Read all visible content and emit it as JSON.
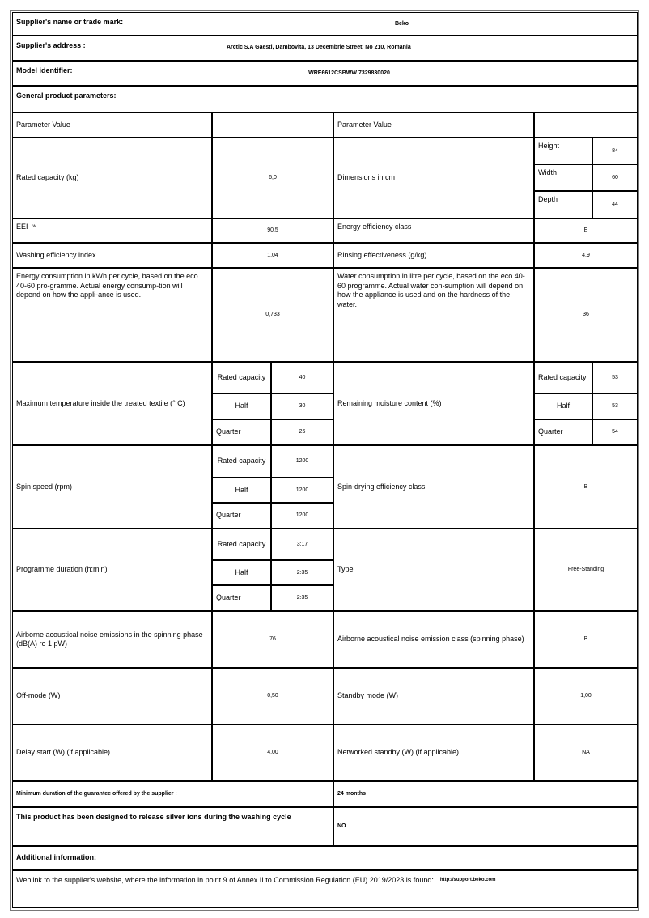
{
  "supplier_name": {
    "label": "Supplier's name or trade mark:",
    "value": "Beko"
  },
  "supplier_address": {
    "label": "Supplier's address :",
    "value": "Arctic S.A  Gaesti, Dambovita, 13 Decembrie Street, No 210, Romania"
  },
  "model_identifier": {
    "label": "Model identifier:",
    "value": "WRE6612CSBWW 7329830020"
  },
  "general_title": "General product parameters:",
  "param_header_left": "Parameter Value",
  "param_header_right": "Parameter Value",
  "rated_capacity": {
    "label": "Rated capacity (kg)",
    "value": "6,0"
  },
  "dimensions": {
    "label": "Dimensions in cm",
    "height_label": "Height",
    "height": "84",
    "width_label": "Width",
    "width": "60",
    "depth_label": "Depth",
    "depth": "44"
  },
  "eei": {
    "label": "EEI",
    "sub": "w",
    "value": "90,5"
  },
  "energy_class": {
    "label": "Energy efficiency class",
    "value": "E"
  },
  "washing_index": {
    "label": "Washing efficiency index",
    "value": "1,04"
  },
  "rinsing": {
    "label": "Rinsing effectiveness (g/kg)",
    "value": "4,9"
  },
  "energy_consumption": {
    "label": "Energy consumption in kWh per cycle, based on the eco 40-60 pro-gramme. Actual energy consump-tion will depend on how the appli-ance is used.",
    "value": "0,733"
  },
  "water_consumption": {
    "label": "Water consumption in litre per cycle, based on the eco 40-60 programme. Actual water con-sumption will depend on how the appliance is used and on the hardness of the water.",
    "value": "36"
  },
  "load_labels": {
    "rated": "Rated capacity",
    "half": "Half",
    "quarter": "Quarter"
  },
  "max_temp": {
    "label": "Maximum temperature inside the treated textile (° C)",
    "rated": "40",
    "half": "30",
    "quarter": "26"
  },
  "moisture": {
    "label": "Remaining moisture content (%)",
    "rated": "53",
    "half": "53",
    "quarter": "54"
  },
  "spin_speed": {
    "label": "Spin speed (rpm)",
    "rated": "1200",
    "half": "1200",
    "quarter": "1200"
  },
  "spin_class": {
    "label": "Spin-drying efficiency class",
    "value": "B"
  },
  "duration": {
    "label": "Programme duration (h:min)",
    "rated": "3:17",
    "half": "2:35",
    "quarter": "2:35"
  },
  "type": {
    "label": "Type",
    "value": "Free-Standing"
  },
  "noise": {
    "label": "Airborne acoustical noise emissions in the spinning phase (dB(A) re 1 pW)",
    "value": "76"
  },
  "noise_class": {
    "label": "Airborne acoustical noise emission class (spinning phase)",
    "value": "B"
  },
  "off_mode": {
    "label": "Off-mode (W)",
    "value": "0,50"
  },
  "standby": {
    "label": "Standby mode (W)",
    "value": "1,00"
  },
  "delay_start": {
    "label": "Delay start (W) (if applicable)",
    "value": "4,00"
  },
  "networked_standby": {
    "label": "Networked standby (W) (if applicable)",
    "value": "NA"
  },
  "guarantee": {
    "label": "Minimum duration of the guarantee offered by the supplier :",
    "value": "24  months"
  },
  "silver_ions": {
    "label": "This product has been designed to release silver ions during the washing cycle",
    "value": "NO"
  },
  "additional_title": "Additional information:",
  "weblink": {
    "label": "Weblink to the supplier's website, where the information in point 9 of Annex II to Commission Regulation (EU) 2019/2023 is found:",
    "value": "http://support.beko.com"
  }
}
